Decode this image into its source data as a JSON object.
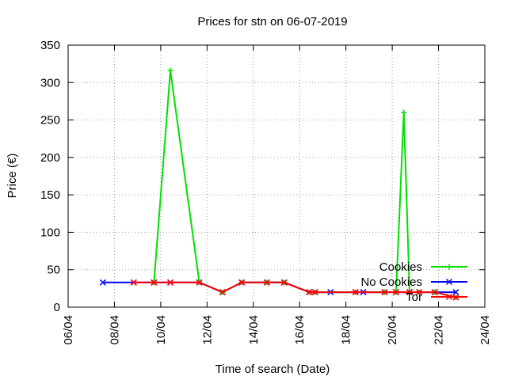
{
  "chart_data": {
    "type": "line",
    "title": "Prices for stn on 06-07-2019",
    "xlabel": "Time of search (Date)",
    "ylabel": "Price (€)",
    "x_axis": {
      "type": "date",
      "range": [
        "2019-04-06",
        "2019-04-24"
      ],
      "ticks": [
        "06/04",
        "08/04",
        "10/04",
        "12/04",
        "14/04",
        "16/04",
        "18/04",
        "20/04",
        "22/04",
        "24/04"
      ]
    },
    "y_axis": {
      "range": [
        0,
        350
      ],
      "ticks": [
        "0",
        "50",
        "100",
        "150",
        "200",
        "250",
        "300",
        "350"
      ]
    },
    "grid": true,
    "legend_position": "bottom-right",
    "series": [
      {
        "name": "Cookies",
        "color": "#00e000",
        "marker": "plus",
        "points": [
          [
            "2019-04-09 17:00",
            33
          ],
          [
            "2019-04-10 10:00",
            316
          ],
          [
            "2019-04-11 16:00",
            33
          ],
          [
            "2019-04-12 16:00",
            20
          ],
          [
            "2019-04-13 12:00",
            33
          ],
          [
            "2019-04-14 14:00",
            33
          ],
          [
            "2019-04-15 08:00",
            33
          ],
          [
            "2019-04-16 10:00",
            20
          ],
          [
            "2019-04-16 16:00",
            20
          ],
          [
            "2019-04-18 10:00",
            20
          ],
          [
            "2019-04-19 16:00",
            20
          ],
          [
            "2019-04-20 04:00",
            20
          ],
          [
            "2019-04-20 12:00",
            260
          ],
          [
            "2019-04-20 18:00",
            20
          ],
          [
            "2019-04-21 04:00",
            20
          ],
          [
            "2019-04-21 20:00",
            20
          ],
          [
            "2019-04-22 18:00",
            13
          ]
        ]
      },
      {
        "name": "No Cookies",
        "color": "#0000ff",
        "marker": "cross",
        "points": [
          [
            "2019-04-07 12:00",
            33
          ],
          [
            "2019-04-08 20:00",
            33
          ],
          [
            "2019-04-09 17:00",
            33
          ],
          [
            "2019-04-10 10:00",
            33
          ],
          [
            "2019-04-11 16:00",
            33
          ],
          [
            "2019-04-12 16:00",
            20
          ],
          [
            "2019-04-13 12:00",
            33
          ],
          [
            "2019-04-14 14:00",
            33
          ],
          [
            "2019-04-15 08:00",
            33
          ],
          [
            "2019-04-16 10:00",
            20
          ],
          [
            "2019-04-16 16:00",
            20
          ],
          [
            "2019-04-17 08:00",
            20
          ],
          [
            "2019-04-18 10:00",
            20
          ],
          [
            "2019-04-18 18:00",
            20
          ],
          [
            "2019-04-19 16:00",
            20
          ],
          [
            "2019-04-20 04:00",
            20
          ],
          [
            "2019-04-20 18:00",
            20
          ],
          [
            "2019-04-21 04:00",
            20
          ],
          [
            "2019-04-21 20:00",
            20
          ],
          [
            "2019-04-22 18:00",
            20
          ]
        ]
      },
      {
        "name": "Tor",
        "color": "#ff0000",
        "marker": "cross",
        "points": [
          [
            "2019-04-08 20:00",
            33
          ],
          [
            "2019-04-09 17:00",
            33
          ],
          [
            "2019-04-10 10:00",
            33
          ],
          [
            "2019-04-11 16:00",
            33
          ],
          [
            "2019-04-12 16:00",
            20
          ],
          [
            "2019-04-13 12:00",
            33
          ],
          [
            "2019-04-14 14:00",
            33
          ],
          [
            "2019-04-15 08:00",
            33
          ],
          [
            "2019-04-16 10:00",
            20
          ],
          [
            "2019-04-16 16:00",
            20
          ],
          [
            "2019-04-18 10:00",
            20
          ],
          [
            "2019-04-19 16:00",
            20
          ],
          [
            "2019-04-20 04:00",
            20
          ],
          [
            "2019-04-20 18:00",
            20
          ],
          [
            "2019-04-21 04:00",
            20
          ],
          [
            "2019-04-21 20:00",
            20
          ],
          [
            "2019-04-22 18:00",
            13
          ]
        ]
      }
    ]
  }
}
